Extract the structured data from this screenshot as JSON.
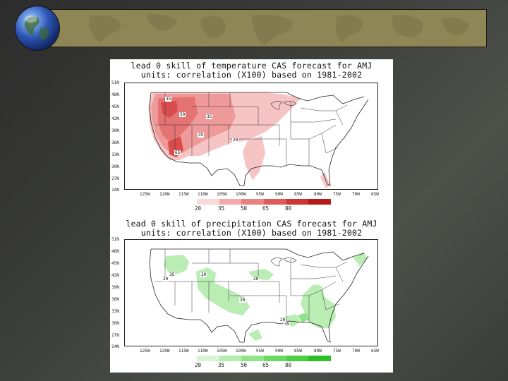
{
  "slide": {
    "colors": {
      "banner": "#8f8656",
      "background": "#333631"
    },
    "icons": [
      "globe-icon"
    ]
  },
  "panels": [
    {
      "id": "temperature",
      "title_line1": "lead 0 skill of temperature CAS forecast for AMJ",
      "title_line2": "units: correlation (X100) based on 1981-2002",
      "lat_labels": [
        "51N",
        "48N",
        "45N",
        "42N",
        "39N",
        "36N",
        "33N",
        "30N",
        "27N",
        "24N"
      ],
      "lon_labels": [
        "125W",
        "120W",
        "115W",
        "110W",
        "105W",
        "100W",
        "95W",
        "90W",
        "85W",
        "80W",
        "75W",
        "70W",
        "65W"
      ],
      "contour_labels": [
        "35",
        "50",
        "35",
        "35",
        "20",
        "65"
      ],
      "colorbar": {
        "levels": [
          "20",
          "35",
          "50",
          "65",
          "80"
        ],
        "colors": [
          "#fbd8d8",
          "#f4a9a9",
          "#eb8080",
          "#e05a5a",
          "#cf3434",
          "#b51b1b"
        ]
      }
    },
    {
      "id": "precipitation",
      "title_line1": "lead 0 skill of precipitation CAS forecast for AMJ",
      "title_line2": "units: correlation (X100) based on 1981-2002",
      "lat_labels": [
        "51N",
        "48N",
        "45N",
        "42N",
        "39N",
        "36N",
        "33N",
        "30N",
        "27N",
        "24N"
      ],
      "lon_labels": [
        "125W",
        "120W",
        "115W",
        "110W",
        "105W",
        "100W",
        "95W",
        "90W",
        "85W",
        "80W",
        "75W",
        "70W",
        "65W"
      ],
      "contour_labels": [
        "35",
        "20",
        "20",
        "20",
        "20",
        "20",
        "35"
      ],
      "colorbar": {
        "levels": [
          "20",
          "35",
          "50",
          "65",
          "80"
        ],
        "colors": [
          "#d8f5d4",
          "#b4ecae",
          "#8fe388",
          "#6cd964",
          "#4ccf44",
          "#2fbf27"
        ]
      }
    }
  ]
}
